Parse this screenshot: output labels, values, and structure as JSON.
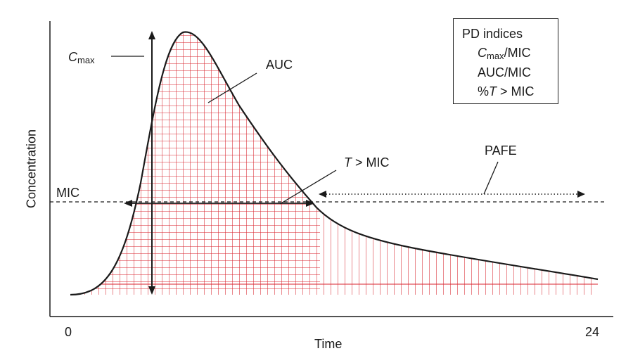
{
  "axes": {
    "ylabel": "Concentration",
    "xlabel": "Time",
    "x_start": "0",
    "x_end": "24"
  },
  "labels": {
    "mic": "MIC",
    "cmax_c": "C",
    "cmax_sub": "max",
    "auc": "AUC",
    "t_mic_t": "T",
    "t_mic_rest": " > MIC",
    "pafe": "PAFE"
  },
  "pd_box": {
    "title": "PD indices",
    "line1_c": "C",
    "line1_sub": "max",
    "line1_rest": "/MIC",
    "line2": "AUC/MIC",
    "line3_pct": "%",
    "line3_t": "T",
    "line3_rest": " > MIC"
  },
  "colors": {
    "curve": "#1a1a1a",
    "hatch": "#d9252f",
    "axis": "#1a1a1a"
  }
}
